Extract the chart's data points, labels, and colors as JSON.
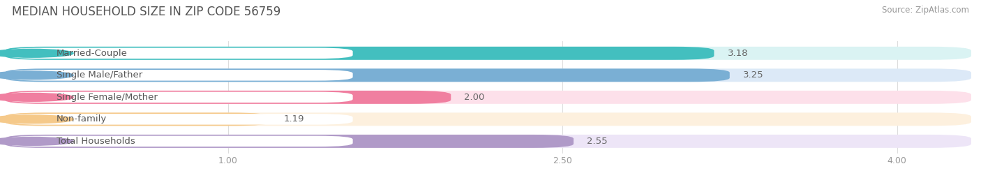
{
  "title": "MEDIAN HOUSEHOLD SIZE IN ZIP CODE 56759",
  "source": "Source: ZipAtlas.com",
  "categories": [
    "Married-Couple",
    "Single Male/Father",
    "Single Female/Mother",
    "Non-family",
    "Total Households"
  ],
  "values": [
    3.18,
    3.25,
    2.0,
    1.19,
    2.55
  ],
  "bar_colors": [
    "#43bfbf",
    "#7aafd4",
    "#f07fa0",
    "#f5c98a",
    "#b09ac8"
  ],
  "bar_bg_colors": [
    "#daf3f3",
    "#dce9f7",
    "#fde0ea",
    "#fdf0de",
    "#ede5f7"
  ],
  "xlim_min": 0,
  "xlim_max": 4.333,
  "xticks": [
    1.0,
    2.5,
    4.0
  ],
  "title_fontsize": 12,
  "source_fontsize": 8.5,
  "label_fontsize": 9.5,
  "value_fontsize": 9.5,
  "background_color": "#ffffff",
  "label_text_color": "#555555",
  "value_text_color": "#666666",
  "title_color": "#555555"
}
